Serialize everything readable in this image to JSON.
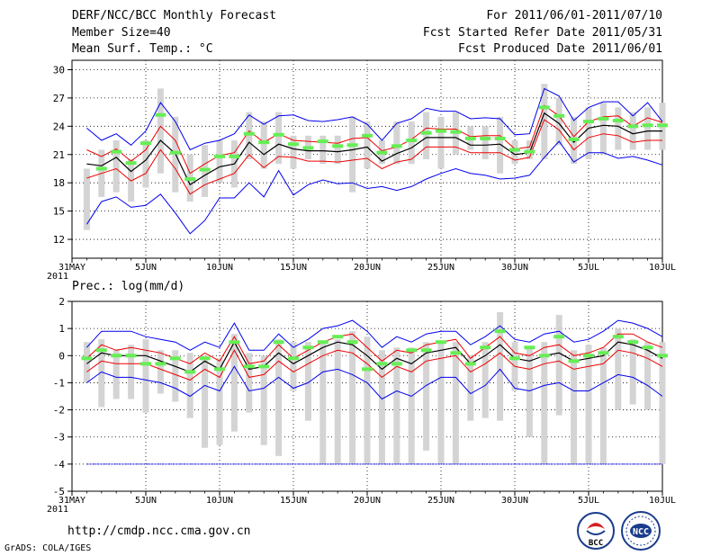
{
  "header": {
    "title": "DERF/NCC/BCC Monthly Forecast",
    "member_size": "Member Size=40",
    "variable": "Mean Surf. Temp.: °C",
    "period": "For 2011/06/01-2011/07/10",
    "started": "Fcst Started Refer Date 2011/05/31",
    "produced": "Fcst Produced Date 2011/06/01"
  },
  "footer": {
    "url": "http://cmdp.ncc.cma.gov.cn",
    "credit": "GrADS: COLA/IGES",
    "logo1_text": "BCC",
    "logo2_text": "NCC"
  },
  "colors": {
    "envelope": "#0000ee",
    "spread": "#ee0000",
    "mean": "#000000",
    "box": "#d4d4d4",
    "marker": "#66ee55"
  },
  "chart_data": [
    {
      "type": "line",
      "title": "Mean Surf. Temp.: °C",
      "x_tick_labels": [
        "31MAY",
        "5JUN",
        "10JUN",
        "15JUN",
        "20JUN",
        "25JUN",
        "30JUN",
        "5JUL",
        "10JUL"
      ],
      "x_year_label": "2011",
      "x_range": [
        0,
        40
      ],
      "ylim": [
        10,
        31
      ],
      "y_ticks": [
        12,
        15,
        18,
        21,
        24,
        27,
        30
      ],
      "x": [
        1,
        2,
        3,
        4,
        5,
        6,
        7,
        8,
        9,
        10,
        11,
        12,
        13,
        14,
        15,
        16,
        17,
        18,
        19,
        20,
        21,
        22,
        23,
        24,
        25,
        26,
        27,
        28,
        29,
        30,
        31,
        32,
        33,
        34,
        35,
        36,
        37,
        38,
        39,
        40
      ],
      "series": [
        {
          "name": "max",
          "values": [
            23.8,
            22.5,
            23.2,
            22.0,
            23.5,
            26.5,
            24.5,
            21.5,
            22.2,
            22.5,
            23.2,
            25.2,
            24.2,
            25.1,
            25.2,
            24.6,
            24.5,
            24.7,
            25.0,
            24.2,
            22.5,
            24.3,
            24.8,
            25.9,
            25.6,
            25.6,
            24.8,
            24.9,
            24.8,
            23.1,
            23.2,
            28.0,
            27.2,
            24.6,
            26.0,
            26.6,
            26.6,
            25.1,
            26.5,
            24.5
          ]
        },
        {
          "name": "upper",
          "values": [
            21.5,
            20.8,
            21.6,
            20.3,
            21.5,
            24.0,
            22.5,
            19.0,
            20.0,
            20.9,
            21.2,
            23.5,
            22.3,
            23.2,
            22.5,
            22.4,
            22.3,
            22.2,
            22.7,
            22.8,
            21.4,
            21.8,
            22.6,
            23.8,
            23.7,
            23.7,
            22.9,
            23.0,
            23.0,
            21.6,
            21.8,
            26.2,
            25.1,
            22.9,
            24.5,
            25.0,
            25.1,
            24.0,
            24.9,
            24.4
          ]
        },
        {
          "name": "mean",
          "values": [
            20.0,
            19.8,
            20.7,
            19.2,
            20.4,
            22.5,
            21.1,
            17.8,
            18.8,
            19.7,
            20.0,
            22.3,
            21.0,
            22.1,
            21.6,
            21.4,
            21.4,
            21.3,
            21.5,
            21.8,
            20.3,
            21.1,
            21.7,
            22.8,
            22.8,
            22.8,
            22.0,
            22.0,
            22.1,
            21.0,
            21.2,
            25.4,
            24.3,
            22.3,
            23.8,
            24.1,
            24.0,
            23.2,
            23.5,
            23.5
          ]
        },
        {
          "name": "lower",
          "values": [
            18.5,
            19.0,
            19.5,
            18.2,
            19.0,
            21.5,
            19.5,
            16.8,
            17.8,
            18.4,
            19.0,
            21.0,
            19.6,
            20.8,
            20.7,
            20.3,
            20.3,
            20.2,
            20.4,
            20.6,
            19.5,
            20.2,
            20.5,
            21.8,
            21.8,
            21.8,
            21.2,
            21.2,
            21.2,
            20.4,
            20.7,
            24.7,
            23.6,
            21.5,
            22.8,
            23.2,
            23.0,
            22.3,
            22.5,
            22.5
          ]
        },
        {
          "name": "min",
          "values": [
            13.6,
            16.0,
            16.5,
            15.4,
            15.6,
            16.8,
            14.8,
            12.6,
            14.0,
            16.4,
            16.4,
            18.0,
            16.5,
            19.3,
            16.7,
            17.8,
            18.3,
            17.9,
            18.0,
            17.4,
            17.6,
            17.2,
            17.6,
            18.4,
            19.0,
            19.5,
            19.0,
            18.8,
            18.4,
            18.5,
            18.8,
            20.7,
            22.4,
            20.2,
            21.2,
            21.2,
            20.6,
            20.8,
            20.4,
            19.9
          ]
        },
        {
          "name": "box_high",
          "values": [
            19.5,
            21.5,
            22.5,
            20.5,
            22.5,
            28.0,
            25.0,
            21.0,
            22.0,
            22.5,
            22.5,
            25.5,
            24.5,
            25.5,
            23.0,
            23.0,
            23.0,
            23.0,
            25.0,
            24.5,
            22.5,
            24.5,
            24.5,
            25.5,
            25.0,
            25.5,
            24.0,
            24.0,
            25.0,
            22.5,
            22.5,
            28.5,
            27.0,
            25.0,
            26.0,
            26.5,
            26.0,
            25.5,
            26.0,
            26.5
          ]
        },
        {
          "name": "box_low",
          "values": [
            13.0,
            16.5,
            17.0,
            16.0,
            17.5,
            19.0,
            17.0,
            16.0,
            16.5,
            18.0,
            17.5,
            20.5,
            19.5,
            20.0,
            19.5,
            20.5,
            20.0,
            20.0,
            17.0,
            19.5,
            20.0,
            20.0,
            20.0,
            20.5,
            19.5,
            21.0,
            21.5,
            20.5,
            19.0,
            20.0,
            20.5,
            20.5,
            22.0,
            20.0,
            20.5,
            21.0,
            21.5,
            21.5,
            21.5,
            21.5
          ]
        },
        {
          "name": "marker",
          "values": [
            null,
            19.5,
            21.3,
            20.1,
            22.2,
            25.2,
            21.2,
            18.4,
            19.4,
            20.8,
            20.8,
            23.2,
            22.3,
            23.1,
            22.1,
            21.7,
            22.4,
            21.9,
            22.0,
            23.0,
            21.2,
            21.9,
            22.5,
            23.3,
            23.5,
            23.4,
            22.7,
            22.7,
            22.7,
            21.5,
            21.3,
            26.0,
            25.1,
            22.6,
            24.5,
            24.8,
            24.6,
            24.0,
            24.1,
            24.1
          ]
        }
      ]
    },
    {
      "type": "line",
      "title": "Prec.: log(mm/d)",
      "x_tick_labels": [
        "31MAY",
        "5JUN",
        "10JUN",
        "15JUN",
        "20JUN",
        "25JUN",
        "30JUN",
        "5JUL",
        "10JUL"
      ],
      "x_year_label": "2011",
      "x_range": [
        0,
        40
      ],
      "ylim": [
        -5,
        2
      ],
      "y_ticks": [
        -5,
        -4,
        -3,
        -2,
        -1,
        0,
        1,
        2
      ],
      "x": [
        1,
        2,
        3,
        4,
        5,
        6,
        7,
        8,
        9,
        10,
        11,
        12,
        13,
        14,
        15,
        16,
        17,
        18,
        19,
        20,
        21,
        22,
        23,
        24,
        25,
        26,
        27,
        28,
        29,
        30,
        31,
        32,
        33,
        34,
        35,
        36,
        37,
        38,
        39,
        40
      ],
      "series": [
        {
          "name": "max",
          "values": [
            0.3,
            0.9,
            0.9,
            0.9,
            0.7,
            0.6,
            0.5,
            0.2,
            0.5,
            0.3,
            1.2,
            0.2,
            0.2,
            0.8,
            0.3,
            0.6,
            1.0,
            1.1,
            1.3,
            0.9,
            0.3,
            0.7,
            0.5,
            0.8,
            0.9,
            0.9,
            0.4,
            0.7,
            1.1,
            0.6,
            0.5,
            0.8,
            0.9,
            0.5,
            0.6,
            0.9,
            1.3,
            1.2,
            1.0,
            0.7
          ]
        },
        {
          "name": "upper",
          "values": [
            -0.1,
            0.4,
            0.2,
            0.3,
            0.2,
            0.1,
            -0.1,
            -0.3,
            0.1,
            -0.2,
            0.7,
            -0.3,
            -0.2,
            0.4,
            -0.1,
            0.2,
            0.5,
            0.7,
            0.8,
            0.3,
            -0.2,
            0.2,
            0.1,
            0.4,
            0.5,
            0.6,
            -0.1,
            0.3,
            0.7,
            0.1,
            0.0,
            0.3,
            0.4,
            0.0,
            0.1,
            0.3,
            0.8,
            0.8,
            0.5,
            0.3
          ]
        },
        {
          "name": "mean",
          "values": [
            -0.3,
            0.1,
            0.0,
            0.0,
            0.0,
            -0.2,
            -0.4,
            -0.6,
            -0.2,
            -0.5,
            0.5,
            -0.5,
            -0.4,
            0.1,
            -0.3,
            0.0,
            0.3,
            0.5,
            0.4,
            0.0,
            -0.5,
            -0.1,
            -0.3,
            0.1,
            0.2,
            0.3,
            -0.3,
            0.0,
            0.4,
            -0.1,
            -0.2,
            0.0,
            0.1,
            -0.2,
            -0.1,
            0.0,
            0.5,
            0.4,
            0.2,
            -0.1
          ]
        },
        {
          "name": "lower",
          "values": [
            -0.6,
            -0.2,
            -0.3,
            -0.3,
            -0.3,
            -0.5,
            -0.7,
            -0.9,
            -0.5,
            -0.8,
            0.2,
            -0.8,
            -0.7,
            -0.2,
            -0.6,
            -0.3,
            0.0,
            0.2,
            0.1,
            -0.3,
            -0.8,
            -0.4,
            -0.6,
            -0.2,
            -0.1,
            0.0,
            -0.6,
            -0.3,
            0.1,
            -0.4,
            -0.5,
            -0.3,
            -0.2,
            -0.5,
            -0.4,
            -0.3,
            0.2,
            0.1,
            -0.1,
            -0.4
          ]
        },
        {
          "name": "min",
          "values": [
            -1.0,
            -0.6,
            -0.8,
            -0.8,
            -0.9,
            -1.0,
            -1.2,
            -1.5,
            -1.1,
            -1.3,
            -0.4,
            -1.3,
            -1.2,
            -0.8,
            -1.2,
            -1.0,
            -0.6,
            -0.5,
            -0.7,
            -1.0,
            -1.6,
            -1.3,
            -1.5,
            -1.1,
            -0.8,
            -0.8,
            -1.4,
            -1.1,
            -0.5,
            -1.2,
            -1.3,
            -1.1,
            -1.0,
            -1.3,
            -1.3,
            -1.0,
            -0.7,
            -0.8,
            -1.1,
            -1.5
          ]
        },
        {
          "name": "box_high",
          "values": [
            0.5,
            0.6,
            0.2,
            0.4,
            0.6,
            0.2,
            0.2,
            0.1,
            0.0,
            -0.1,
            0.8,
            0.1,
            0.0,
            0.6,
            0.5,
            0.5,
            0.5,
            0.6,
            0.9,
            0.7,
            0.2,
            0.3,
            0.3,
            0.5,
            0.5,
            0.5,
            0.0,
            0.5,
            1.6,
            0.5,
            0.3,
            0.5,
            1.5,
            0.2,
            0.4,
            0.3,
            1.0,
            0.6,
            0.5,
            0.5
          ]
        },
        {
          "name": "box_low",
          "values": [
            -1.0,
            -1.9,
            -1.6,
            -1.6,
            -2.1,
            -1.4,
            -1.7,
            -2.3,
            -3.4,
            -3.3,
            -2.8,
            -2.1,
            -3.3,
            -3.7,
            -1.3,
            -2.4,
            -4.0,
            -4.0,
            -4.0,
            -4.0,
            -4.0,
            -4.0,
            -4.0,
            -3.5,
            -4.0,
            -4.0,
            -2.4,
            -2.3,
            -2.4,
            -1.3,
            -3.0,
            -4.0,
            -2.2,
            -4.0,
            -4.0,
            -4.0,
            -2.0,
            -1.8,
            -2.0,
            -4.0
          ]
        },
        {
          "name": "marker",
          "values": [
            -0.1,
            0.2,
            0.0,
            0.0,
            -0.3,
            -0.3,
            -0.1,
            -0.6,
            -0.1,
            -0.5,
            0.5,
            -0.4,
            -0.4,
            0.5,
            -0.1,
            0.3,
            0.5,
            0.7,
            0.5,
            -0.5,
            -0.3,
            -0.3,
            0.2,
            0.2,
            0.5,
            0.1,
            -0.3,
            0.3,
            0.9,
            -0.1,
            0.3,
            0.0,
            0.7,
            -0.2,
            0.0,
            0.1,
            0.7,
            0.5,
            0.3,
            0.0
          ]
        },
        {
          "name": "floor",
          "values": [
            -4,
            -4,
            -4,
            -4,
            -4,
            -4,
            -4,
            -4,
            -4,
            -4,
            -4,
            -4,
            -4,
            -4,
            -4,
            -4,
            -4,
            -4,
            -4,
            -4,
            -4,
            -4,
            -4,
            -4,
            -4,
            -4,
            -4,
            -4,
            -4,
            -4,
            -4,
            -4,
            -4,
            -4,
            -4,
            -4,
            -4,
            -4,
            -4,
            -4
          ]
        }
      ]
    }
  ]
}
